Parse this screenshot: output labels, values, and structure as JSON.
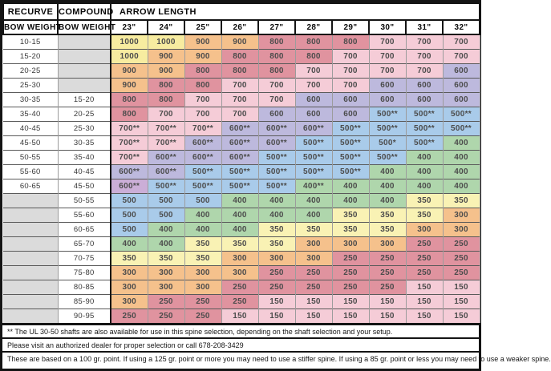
{
  "chart_data": {
    "type": "table",
    "header": {
      "recurve_label": "RECURVE",
      "compound_label": "COMPOUND",
      "arrow_length_label": "ARROW LENGTH",
      "bow_weight_label": "BOW WEIGHT",
      "arrow_lengths": [
        "23\"",
        "24\"",
        "25\"",
        "26\"",
        "27\"",
        "28\"",
        "29\"",
        "30\"",
        "31\"",
        "32\""
      ]
    },
    "rows": [
      {
        "recurve": "10-15",
        "compound": "",
        "spines": [
          "1000",
          "1000",
          "900",
          "900",
          "800",
          "800",
          "800",
          "700",
          "700",
          "700"
        ]
      },
      {
        "recurve": "15-20",
        "compound": "",
        "spines": [
          "1000",
          "900",
          "900",
          "800",
          "800",
          "800",
          "700",
          "700",
          "700",
          "700"
        ]
      },
      {
        "recurve": "20-25",
        "compound": "",
        "spines": [
          "900",
          "900",
          "800",
          "800",
          "800",
          "700",
          "700",
          "700",
          "700",
          "600"
        ]
      },
      {
        "recurve": "25-30",
        "compound": "",
        "spines": [
          "900",
          "800",
          "800",
          "700",
          "700",
          "700",
          "700",
          "600",
          "600",
          "600"
        ]
      },
      {
        "recurve": "30-35",
        "compound": "15-20",
        "spines": [
          "800",
          "800",
          "700",
          "700",
          "700",
          "600",
          "600",
          "600",
          "600",
          "600"
        ]
      },
      {
        "recurve": "35-40",
        "compound": "20-25",
        "spines": [
          "800",
          "700",
          "700",
          "700",
          "600",
          "600",
          "600",
          "500**",
          "500**",
          "500**"
        ]
      },
      {
        "recurve": "40-45",
        "compound": "25-30",
        "spines": [
          "700**",
          "700**",
          "700**",
          "600**",
          "600**",
          "600**",
          "500**",
          "500**",
          "500**",
          "500**"
        ]
      },
      {
        "recurve": "45-50",
        "compound": "30-35",
        "spines": [
          "700**",
          "700**",
          "600**",
          "600**",
          "600**",
          "500**",
          "500**",
          "500*",
          "500**",
          "400"
        ]
      },
      {
        "recurve": "50-55",
        "compound": "35-40",
        "spines": [
          "700**",
          "600**",
          "600**",
          "600**",
          "500**",
          "500**",
          "500**",
          "500**",
          "400",
          "400"
        ]
      },
      {
        "recurve": "55-60",
        "compound": "40-45",
        "spines": [
          "600**",
          "600**",
          "500**",
          "500**",
          "500**",
          "500**",
          "500**",
          "400",
          "400",
          "400"
        ]
      },
      {
        "recurve": "60-65",
        "compound": "45-50",
        "spines": [
          "600**",
          "500**",
          "500**",
          "500**",
          "500**",
          "400**",
          "400",
          "400",
          "400",
          "400"
        ]
      },
      {
        "recurve": "",
        "compound": "50-55",
        "spines": [
          "500",
          "500",
          "500",
          "400",
          "400",
          "400",
          "400",
          "400",
          "350",
          "350"
        ]
      },
      {
        "recurve": "",
        "compound": "55-60",
        "spines": [
          "500",
          "500",
          "400",
          "400",
          "400",
          "400",
          "350",
          "350",
          "350",
          "300"
        ]
      },
      {
        "recurve": "",
        "compound": "60-65",
        "spines": [
          "500",
          "400",
          "400",
          "400",
          "350",
          "350",
          "350",
          "350",
          "300",
          "300"
        ]
      },
      {
        "recurve": "",
        "compound": "65-70",
        "spines": [
          "400",
          "400",
          "350",
          "350",
          "350",
          "300",
          "300",
          "300",
          "250",
          "250"
        ]
      },
      {
        "recurve": "",
        "compound": "70-75",
        "spines": [
          "350",
          "350",
          "350",
          "300",
          "300",
          "300",
          "250",
          "250",
          "250",
          "250"
        ]
      },
      {
        "recurve": "",
        "compound": "75-80",
        "spines": [
          "300",
          "300",
          "300",
          "300",
          "250",
          "250",
          "250",
          "250",
          "250",
          "250"
        ]
      },
      {
        "recurve": "",
        "compound": "80-85",
        "spines": [
          "300",
          "300",
          "300",
          "250",
          "250",
          "250",
          "250",
          "250",
          "150",
          "150"
        ]
      },
      {
        "recurve": "",
        "compound": "85-90",
        "spines": [
          "300",
          "250",
          "250",
          "250",
          "150",
          "150",
          "150",
          "150",
          "150",
          "150"
        ]
      },
      {
        "recurve": "",
        "compound": "90-95",
        "spines": [
          "250",
          "250",
          "250",
          "150",
          "150",
          "150",
          "150",
          "150",
          "150",
          "150"
        ]
      }
    ],
    "spine_color_map": {
      "1000": "#f7eca0",
      "900": "#f5c18c",
      "800": "#e0939f",
      "700": "#f5ccd7",
      "600": "#bdb9dd",
      "500": "#a9cbea",
      "400": "#afd6ac",
      "350": "#f9f2b4",
      "300": "#f5c18c",
      "250": "#e0939f",
      "150": "#f5ccd7"
    },
    "special_cells": [
      {
        "row": 10,
        "col": 0,
        "color": "#cbaed7"
      }
    ],
    "empty_cell_color": "#dbdbdb"
  },
  "footnotes": [
    "** The UL 30-50 shafts are also available for use in this spine selection, depending on the shaft selection and your setup.",
    "Please visit an authorized dealer for proper selection or call 678-208-3429",
    "These are based on a 100 gr. point. If using a 125 gr. point or more you may need to use a stiffer spine. If using a 85 gr. point or less you may need to use a weaker spine."
  ]
}
